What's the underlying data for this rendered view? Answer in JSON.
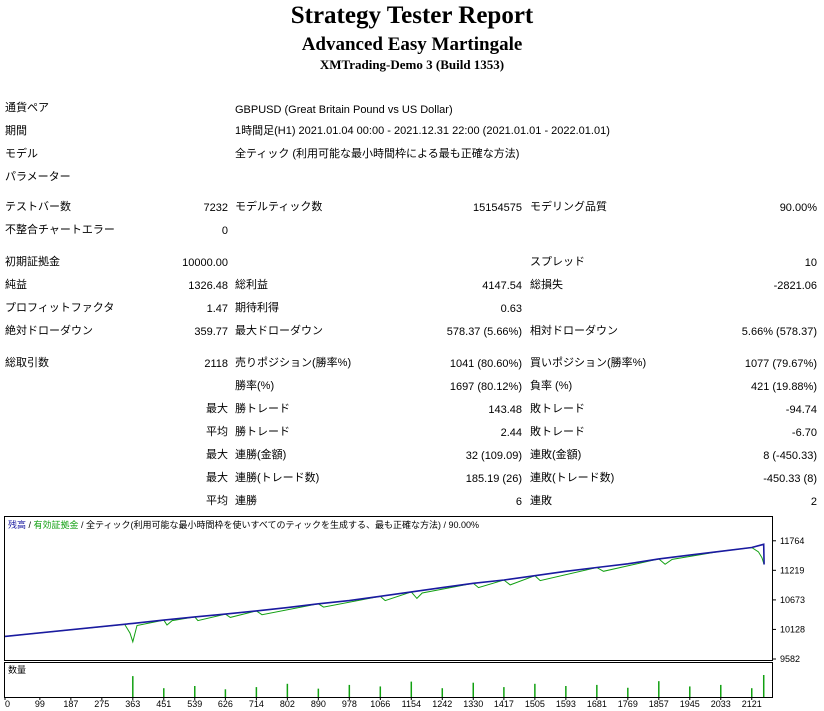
{
  "header": {
    "title": "Strategy Tester Report",
    "ea_name": "Advanced Easy Martingale",
    "account": "XMTrading-Demo 3 (Build 1353)"
  },
  "info": {
    "pair_label": "通貨ペア",
    "pair_value": "GBPUSD (Great Britain Pound vs US Dollar)",
    "period_label": "期間",
    "period_value": "1時間足(H1) 2021.01.04 00:00 - 2021.12.31 22:00 (2021.01.01 - 2022.01.01)",
    "model_label": "モデル",
    "model_value": "全ティック (利用可能な最小時間枠による最も正確な方法)",
    "params_label": "パラメーター"
  },
  "stats": {
    "bars_label": "テストバー数",
    "bars": "7232",
    "ticks_label": "モデルティック数",
    "ticks": "15154575",
    "quality_label": "モデリング品質",
    "quality": "90.00%",
    "mismatch_label": "不整合チャートエラー",
    "mismatch": "0",
    "deposit_label": "初期証拠金",
    "deposit": "10000.00",
    "spread_label": "スプレッド",
    "spread": "10",
    "net_label": "純益",
    "net": "1326.48",
    "gross_profit_label": "総利益",
    "gross_profit": "4147.54",
    "gross_loss_label": "総損失",
    "gross_loss": "-2821.06",
    "pf_label": "プロフィットファクタ",
    "pf": "1.47",
    "expected_label": "期待利得",
    "expected": "0.63",
    "abs_dd_label": "絶対ドローダウン",
    "abs_dd": "359.77",
    "max_dd_label": "最大ドローダウン",
    "max_dd": "578.37 (5.66%)",
    "rel_dd_label": "相対ドローダウン",
    "rel_dd": "5.66% (578.37)",
    "total_label": "総取引数",
    "total": "2118",
    "short_label": "売りポジション(勝率%)",
    "short": "1041 (80.60%)",
    "long_label": "買いポジション(勝率%)",
    "long": "1077 (79.67%)",
    "win_rate_label": "勝率(%)",
    "win_rate": "1697 (80.12%)",
    "loss_rate_label": "負率 (%)",
    "loss_rate": "421 (19.88%)",
    "max_label": "最大",
    "avg_label": "平均",
    "largest_win_label": "勝トレード",
    "largest_win": "143.48",
    "largest_loss_label": "敗トレード",
    "largest_loss": "-94.74",
    "avg_win_label": "勝トレード",
    "avg_win": "2.44",
    "avg_loss_label": "敗トレード",
    "avg_loss": "-6.70",
    "max_cons_win_label": "連勝(金額)",
    "max_cons_win": "32 (109.09)",
    "max_cons_loss_label": "連敗(金額)",
    "max_cons_loss": "8 (-450.33)",
    "max_cons_profit_label": "連勝(トレード数)",
    "max_cons_profit": "185.19 (26)",
    "max_cons_lossamt_label": "連敗(トレード数)",
    "max_cons_lossamt": "-450.33 (8)",
    "avg_cons_win_label": "連勝",
    "avg_cons_win": "6",
    "avg_cons_loss_label": "連敗",
    "avg_cons_loss": "2"
  },
  "chart_legend": {
    "balance": "残高",
    "sep1": " / ",
    "equity": "有効証拠金",
    "rest": " / 全ティック(利用可能な最小時間枠を使いすべてのティックを生成する、最も正確な方法) / 90.00%"
  },
  "chart_data": {
    "type": "line",
    "ylim": [
      9582,
      12000
    ],
    "y_ticks": [
      11764,
      11219,
      10673,
      10128,
      9582
    ],
    "x_ticks": [
      0,
      99,
      187,
      275,
      363,
      451,
      539,
      626,
      714,
      802,
      890,
      978,
      1066,
      1154,
      1242,
      1330,
      1417,
      1505,
      1593,
      1681,
      1769,
      1857,
      1945,
      2033,
      2121
    ],
    "x_max": 2170,
    "series": [
      {
        "name": "残高",
        "color": "#1a1aa0",
        "points": [
          [
            0,
            10000
          ],
          [
            363,
            10240
          ],
          [
            451,
            10300
          ],
          [
            539,
            10360
          ],
          [
            626,
            10410
          ],
          [
            714,
            10470
          ],
          [
            802,
            10530
          ],
          [
            890,
            10600
          ],
          [
            978,
            10660
          ],
          [
            1066,
            10740
          ],
          [
            1154,
            10820
          ],
          [
            1242,
            10900
          ],
          [
            1330,
            10980
          ],
          [
            1417,
            11040
          ],
          [
            1505,
            11120
          ],
          [
            1593,
            11200
          ],
          [
            1681,
            11270
          ],
          [
            1769,
            11340
          ],
          [
            1857,
            11430
          ],
          [
            1945,
            11500
          ],
          [
            2033,
            11570
          ],
          [
            2121,
            11640
          ],
          [
            2155,
            11700
          ],
          [
            2156,
            11326
          ]
        ]
      },
      {
        "name": "有効証拠金",
        "color": "#11a011",
        "points": [
          [
            0,
            10000
          ],
          [
            340,
            10220
          ],
          [
            355,
            10060
          ],
          [
            363,
            9900
          ],
          [
            375,
            10200
          ],
          [
            451,
            10300
          ],
          [
            460,
            10210
          ],
          [
            475,
            10290
          ],
          [
            539,
            10360
          ],
          [
            548,
            10290
          ],
          [
            626,
            10410
          ],
          [
            640,
            10350
          ],
          [
            714,
            10470
          ],
          [
            730,
            10400
          ],
          [
            890,
            10600
          ],
          [
            905,
            10540
          ],
          [
            1066,
            10740
          ],
          [
            1080,
            10660
          ],
          [
            1154,
            10820
          ],
          [
            1170,
            10700
          ],
          [
            1185,
            10800
          ],
          [
            1330,
            10980
          ],
          [
            1345,
            10900
          ],
          [
            1417,
            11040
          ],
          [
            1435,
            10950
          ],
          [
            1505,
            11120
          ],
          [
            1520,
            11030
          ],
          [
            1681,
            11270
          ],
          [
            1700,
            11200
          ],
          [
            1857,
            11430
          ],
          [
            1875,
            11330
          ],
          [
            1895,
            11420
          ],
          [
            2033,
            11570
          ],
          [
            2121,
            11640
          ],
          [
            2140,
            11560
          ],
          [
            2150,
            11450
          ],
          [
            2156,
            11326
          ]
        ]
      }
    ],
    "volume_label": "数量",
    "volume_bars": [
      [
        363,
        95
      ],
      [
        451,
        40
      ],
      [
        539,
        50
      ],
      [
        626,
        35
      ],
      [
        714,
        45
      ],
      [
        802,
        60
      ],
      [
        890,
        38
      ],
      [
        978,
        55
      ],
      [
        1066,
        48
      ],
      [
        1154,
        70
      ],
      [
        1242,
        40
      ],
      [
        1330,
        65
      ],
      [
        1417,
        45
      ],
      [
        1505,
        60
      ],
      [
        1593,
        50
      ],
      [
        1681,
        55
      ],
      [
        1769,
        42
      ],
      [
        1857,
        72
      ],
      [
        1945,
        48
      ],
      [
        2033,
        55
      ],
      [
        2121,
        40
      ],
      [
        2155,
        100
      ]
    ]
  }
}
